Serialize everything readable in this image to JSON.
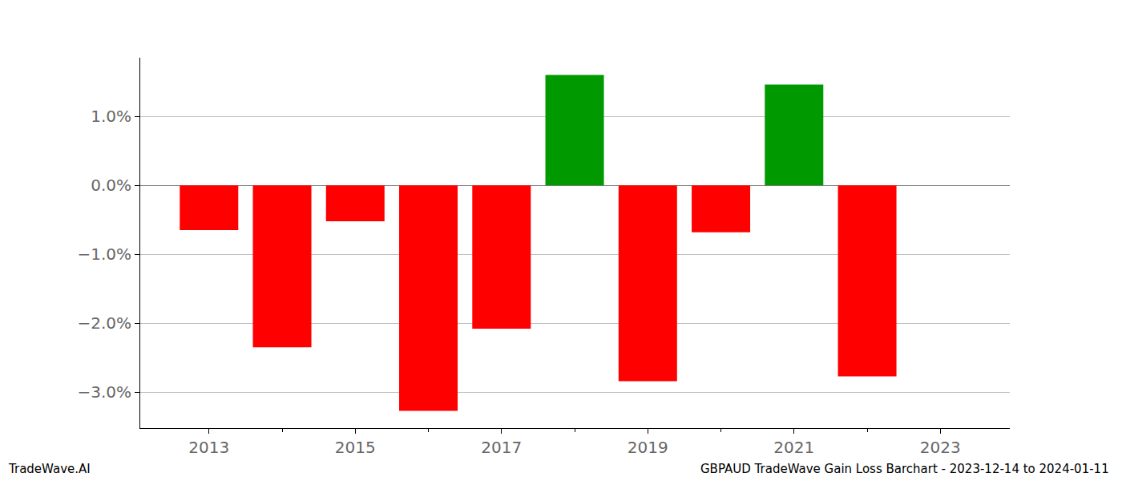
{
  "chart_data": {
    "type": "bar",
    "x": [
      2013,
      2014,
      2015,
      2016,
      2017,
      2018,
      2019,
      2020,
      2021,
      2022
    ],
    "values": [
      -0.65,
      -2.35,
      -0.52,
      -3.27,
      -2.08,
      1.6,
      -2.84,
      -0.68,
      1.46,
      -2.77
    ],
    "colors": [
      "#ff0000",
      "#ff0000",
      "#ff0000",
      "#ff0000",
      "#ff0000",
      "#009900",
      "#ff0000",
      "#ff0000",
      "#009900",
      "#ff0000"
    ],
    "xlim": [
      2012.06,
      2023.95
    ],
    "xticks": [
      2013,
      2015,
      2017,
      2019,
      2021,
      2023
    ],
    "ylim": [
      -3.52,
      1.85
    ],
    "yticks": [
      {
        "value": -3,
        "label": "−3.0%"
      },
      {
        "value": -2,
        "label": "−2.0%"
      },
      {
        "value": -1,
        "label": "−1.0%"
      },
      {
        "value": 0,
        "label": "0.0%"
      },
      {
        "value": 1,
        "label": "1.0%"
      }
    ],
    "grid": true,
    "annotations": [
      "TradeWave.AI",
      "GBPAUD TradeWave Gain Loss Barchart - 2023-12-14 to 2024-01-11"
    ]
  }
}
